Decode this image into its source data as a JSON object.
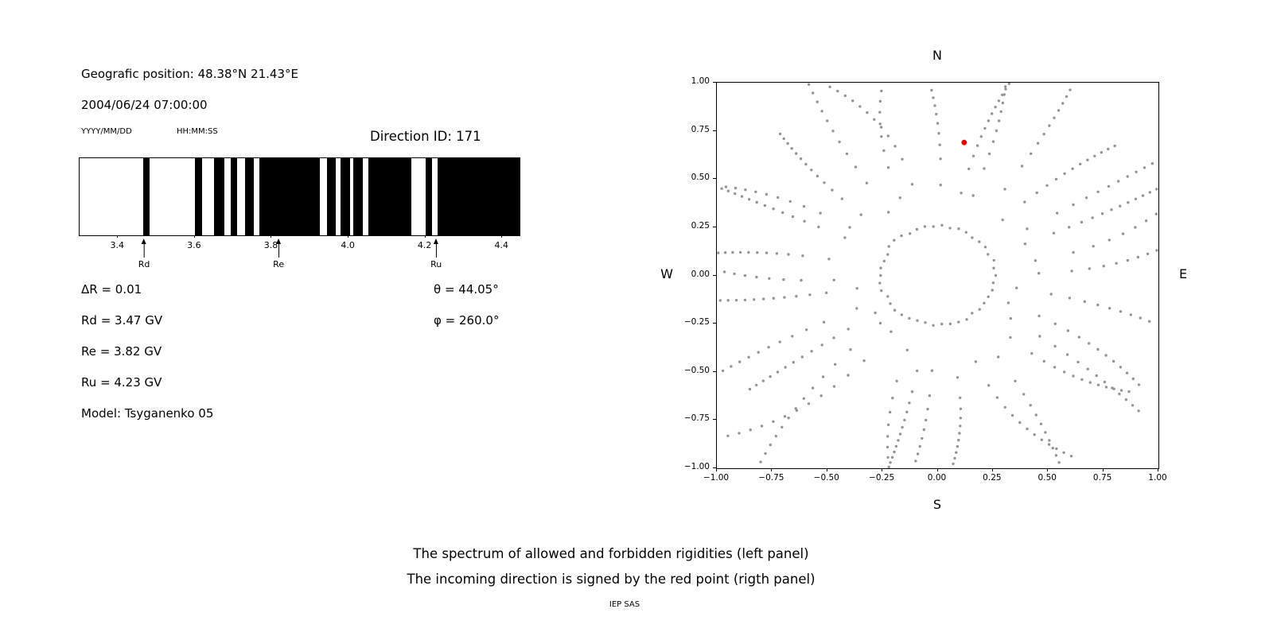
{
  "header": {
    "geographic_position": "Geografic position: 48.38°N 21.43°E",
    "datetime": "2004/06/24 07:00:00",
    "date_format_label": "YYYY/MM/DD",
    "time_format_label": "HH:MM:SS",
    "direction_id_label": "Direction ID: 171"
  },
  "parameters": {
    "delta_r": "ΔR = 0.01",
    "rd": "Rd = 3.47 GV",
    "re": "Re = 3.82 GV",
    "ru": "Ru = 4.23 GV",
    "model": "Model: Tsyganenko 05",
    "theta": "θ = 44.05°",
    "phi": "φ = 260.0°"
  },
  "caption": {
    "line1": "The spectrum of allowed and forbidden rigidities (left panel)",
    "line2": "The incoming direction is signed by the red point (rigth panel)",
    "credit": "IEP SAS"
  },
  "chart_data": [
    {
      "type": "bar",
      "name": "rigidity-spectrum",
      "title": "",
      "description": "Barcode spectrum of allowed (white) and forbidden (black) rigidities in GV",
      "xlim": [
        3.3,
        4.445
      ],
      "xticks": [
        3.4,
        3.6,
        3.8,
        4.0,
        4.2,
        4.4
      ],
      "bar_color": "#000000",
      "forbidden_intervals_gv": [
        [
          3.466,
          3.483
        ],
        [
          3.601,
          3.618
        ],
        [
          3.649,
          3.676
        ],
        [
          3.694,
          3.711
        ],
        [
          3.73,
          3.754
        ],
        [
          3.767,
          3.926
        ],
        [
          3.943,
          3.966
        ],
        [
          3.98,
          4.005
        ],
        [
          4.013,
          4.038
        ],
        [
          4.051,
          4.163
        ],
        [
          4.2,
          4.217
        ],
        [
          4.231,
          4.445
        ]
      ],
      "markers": [
        {
          "label": "Rd",
          "value_gv": 3.47
        },
        {
          "label": "Re",
          "value_gv": 3.82
        },
        {
          "label": "Ru",
          "value_gv": 4.23
        }
      ]
    },
    {
      "type": "scatter",
      "name": "incoming-direction-map",
      "title": "",
      "xlim": [
        -1,
        1
      ],
      "ylim": [
        -1,
        1
      ],
      "xticks": [
        -1.0,
        -0.75,
        -0.5,
        -0.25,
        0.0,
        0.25,
        0.5,
        0.75,
        1.0
      ],
      "yticks": [
        -1.0,
        -0.75,
        -0.5,
        -0.25,
        0.0,
        0.25,
        0.5,
        0.75,
        1.0
      ],
      "compass": {
        "north": "N",
        "south": "S",
        "east": "E",
        "west": "W"
      },
      "dot_color": "#949494",
      "red_point": {
        "x": 0.12,
        "y": 0.69,
        "color": "#dd0000"
      },
      "pattern": {
        "spokes": 32,
        "dots_per_spoke": 13,
        "inner_radius_range": [
          0.34,
          0.55
        ],
        "outer_radius_range": [
          1.02,
          1.32
        ],
        "density_exponent": 0.62,
        "max_curvature_deg": 14,
        "ring_radius": 0.26,
        "ring_dots": 42
      }
    }
  ]
}
